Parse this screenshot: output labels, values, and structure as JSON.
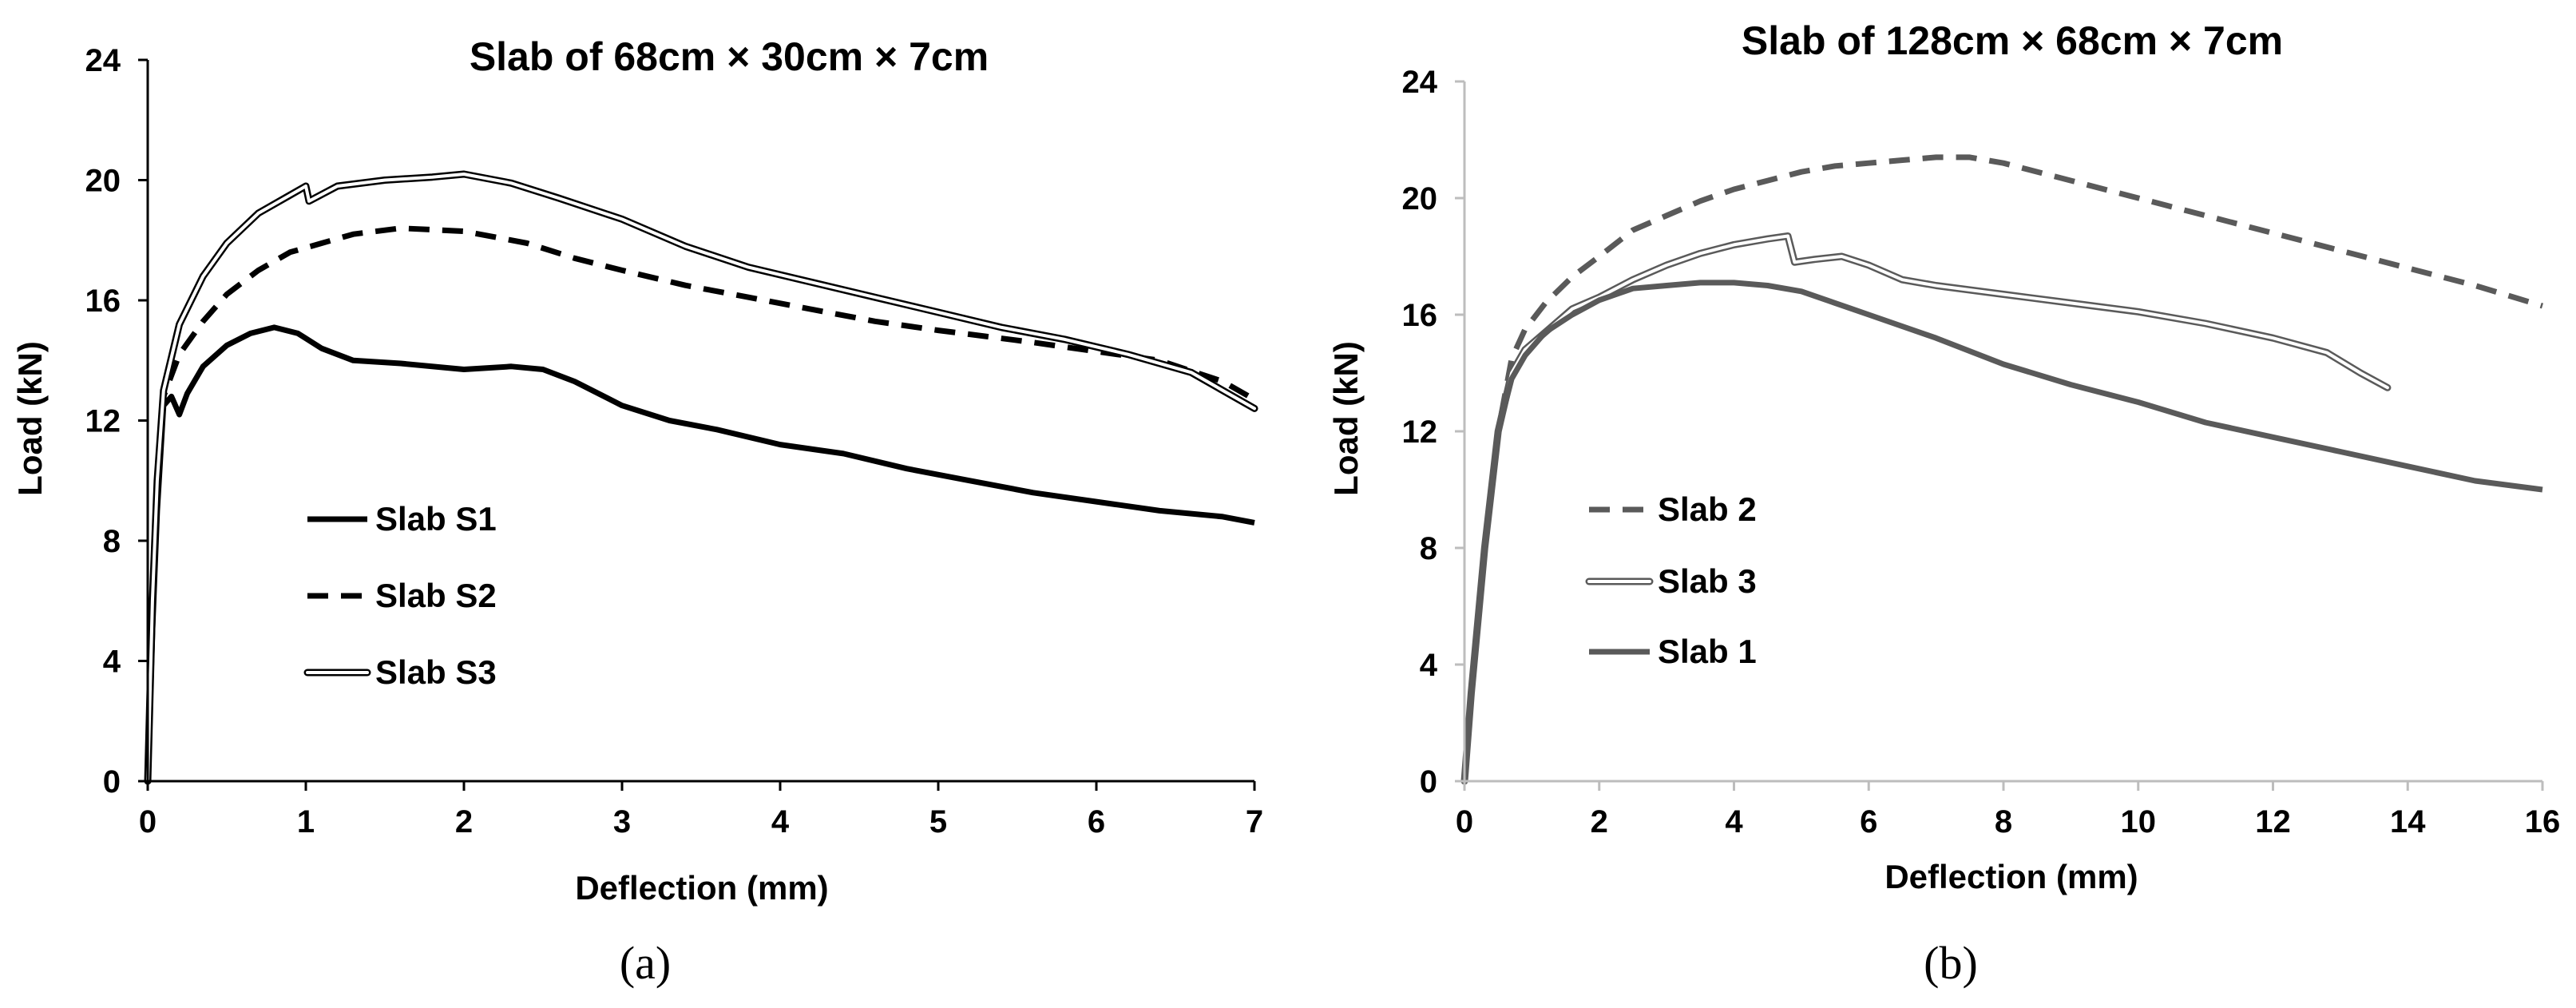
{
  "chart_data": [
    {
      "type": "line",
      "panel_label": "(a)",
      "title": "Slab of  68cm × 30cm × 7cm",
      "xlabel": "Deflection (mm)",
      "ylabel": "Load (kN)",
      "xlim": [
        0,
        7
      ],
      "ylim": [
        0,
        24
      ],
      "xticks": [
        "0",
        "1",
        "2",
        "3",
        "4",
        "5",
        "6",
        "7"
      ],
      "yticks": [
        "0",
        "4",
        "8",
        "12",
        "16",
        "20",
        "24"
      ],
      "legend_position": "lower-left",
      "series": [
        {
          "name": "Slab S1",
          "style": "solid",
          "color": "#000000",
          "x": [
            0,
            0.03,
            0.06,
            0.1,
            0.15,
            0.2,
            0.25,
            0.35,
            0.5,
            0.65,
            0.8,
            0.95,
            1.1,
            1.3,
            1.6,
            2.0,
            2.3,
            2.5,
            2.7,
            3.0,
            3.3,
            3.6,
            4.0,
            4.4,
            4.8,
            5.2,
            5.6,
            6.0,
            6.4,
            6.8,
            7.0
          ],
          "y": [
            0,
            5,
            9,
            12.5,
            12.8,
            12.2,
            12.9,
            13.8,
            14.5,
            14.9,
            15.1,
            14.9,
            14.4,
            14.0,
            13.9,
            13.7,
            13.8,
            13.7,
            13.3,
            12.5,
            12.0,
            11.7,
            11.2,
            10.9,
            10.4,
            10.0,
            9.6,
            9.3,
            9.0,
            8.8,
            8.6
          ]
        },
        {
          "name": "Slab S2",
          "style": "dashed",
          "color": "#000000",
          "x": [
            0,
            0.03,
            0.06,
            0.1,
            0.2,
            0.35,
            0.5,
            0.7,
            0.9,
            1.1,
            1.3,
            1.6,
            2.0,
            2.4,
            2.7,
            3.0,
            3.4,
            3.8,
            4.2,
            4.6,
            5.0,
            5.3,
            5.6,
            6.0,
            6.4,
            6.8,
            7.0
          ],
          "y": [
            0,
            6,
            10,
            12.8,
            14.2,
            15.3,
            16.2,
            17.0,
            17.6,
            17.9,
            18.2,
            18.4,
            18.3,
            17.9,
            17.4,
            17.0,
            16.5,
            16.1,
            15.7,
            15.3,
            15.0,
            14.8,
            14.6,
            14.3,
            14.0,
            13.3,
            12.7
          ]
        },
        {
          "name": "Slab S3",
          "style": "double",
          "color": "#000000",
          "x": [
            0,
            0.03,
            0.06,
            0.1,
            0.2,
            0.35,
            0.5,
            0.7,
            0.9,
            1.0,
            1.02,
            1.2,
            1.5,
            1.8,
            2.0,
            2.3,
            2.6,
            3.0,
            3.4,
            3.8,
            4.2,
            4.6,
            5.0,
            5.4,
            5.8,
            6.2,
            6.6,
            7.0
          ],
          "y": [
            0,
            6,
            10,
            13.0,
            15.2,
            16.8,
            17.9,
            18.9,
            19.5,
            19.8,
            19.3,
            19.8,
            20.0,
            20.1,
            20.2,
            19.9,
            19.4,
            18.7,
            17.8,
            17.1,
            16.6,
            16.1,
            15.6,
            15.1,
            14.7,
            14.2,
            13.6,
            12.4
          ]
        }
      ]
    },
    {
      "type": "line",
      "panel_label": "(b)",
      "title": "Slab of 128cm ×  68cm × 7cm",
      "xlabel": "Deflection (mm)",
      "ylabel": "Load (kN)",
      "xlim": [
        0,
        16
      ],
      "ylim": [
        0,
        24
      ],
      "xticks": [
        "0",
        "2",
        "4",
        "6",
        "8",
        "10",
        "12",
        "14",
        "16"
      ],
      "yticks": [
        "0",
        "4",
        "8",
        "12",
        "16",
        "20",
        "24"
      ],
      "legend_position": "lower-left",
      "series": [
        {
          "name": "Slab 2",
          "style": "dashed",
          "color": "#5a5a5a",
          "x": [
            0,
            0.1,
            0.3,
            0.5,
            0.7,
            0.9,
            1.2,
            1.6,
            2.0,
            2.5,
            3.0,
            3.5,
            4.0,
            4.5,
            5.0,
            5.5,
            6.0,
            6.5,
            7.0,
            7.5,
            8.0,
            9.0,
            10.0,
            11.0,
            12.0,
            13.0,
            14.0,
            15.0,
            16.0
          ],
          "y": [
            0,
            3,
            8,
            12,
            14.5,
            15.5,
            16.4,
            17.3,
            18.0,
            18.9,
            19.4,
            19.9,
            20.3,
            20.6,
            20.9,
            21.1,
            21.2,
            21.3,
            21.4,
            21.4,
            21.2,
            20.6,
            20.0,
            19.4,
            18.8,
            18.2,
            17.6,
            17.0,
            16.3
          ]
        },
        {
          "name": "Slab 3",
          "style": "double",
          "color": "#5a5a5a",
          "x": [
            0,
            0.1,
            0.3,
            0.5,
            0.7,
            0.9,
            1.2,
            1.6,
            2.0,
            2.5,
            3.0,
            3.5,
            4.0,
            4.5,
            4.8,
            4.9,
            5.2,
            5.6,
            6.0,
            6.5,
            7.0,
            8.0,
            9.0,
            10.0,
            11.0,
            12.0,
            12.8,
            13.3,
            13.7
          ],
          "y": [
            0,
            3,
            8,
            12,
            14.0,
            14.8,
            15.4,
            16.2,
            16.6,
            17.2,
            17.7,
            18.1,
            18.4,
            18.6,
            18.7,
            17.8,
            17.9,
            18.0,
            17.7,
            17.2,
            17.0,
            16.7,
            16.4,
            16.1,
            15.7,
            15.2,
            14.7,
            14.0,
            13.5
          ]
        },
        {
          "name": "Slab 1",
          "style": "solid",
          "color": "#5a5a5a",
          "x": [
            0,
            0.1,
            0.3,
            0.5,
            0.7,
            0.9,
            1.2,
            1.6,
            2.0,
            2.5,
            3.0,
            3.5,
            4.0,
            4.5,
            5.0,
            5.5,
            6.0,
            7.0,
            8.0,
            9.0,
            10.0,
            11.0,
            12.0,
            13.0,
            14.0,
            15.0,
            16.0
          ],
          "y": [
            0,
            3,
            8,
            12,
            13.8,
            14.6,
            15.4,
            16.0,
            16.5,
            16.9,
            17.0,
            17.1,
            17.1,
            17.0,
            16.8,
            16.4,
            16.0,
            15.2,
            14.3,
            13.6,
            13.0,
            12.3,
            11.8,
            11.3,
            10.8,
            10.3,
            10.0
          ]
        }
      ]
    }
  ]
}
